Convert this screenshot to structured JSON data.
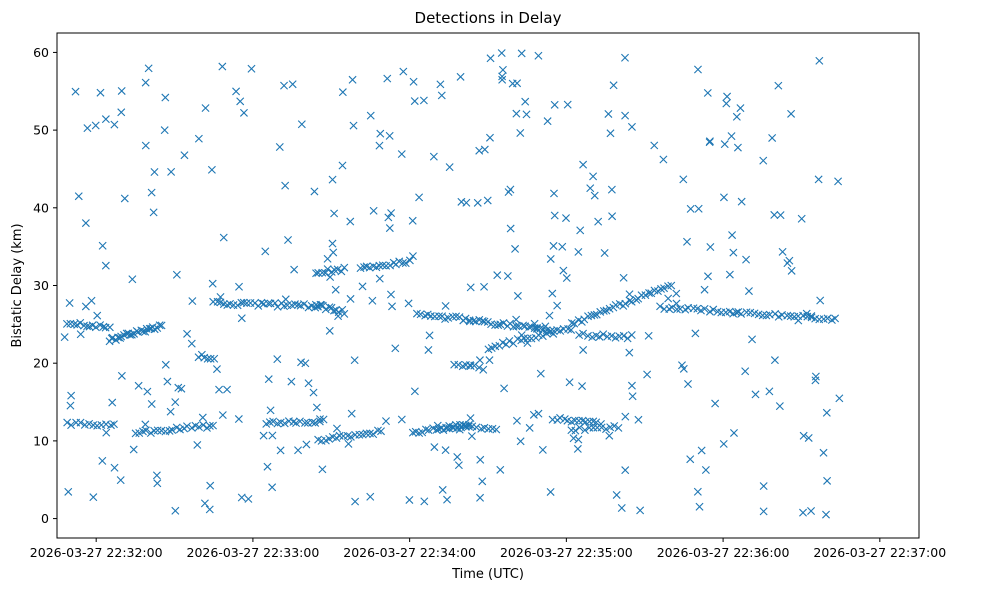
{
  "chart_data": {
    "type": "scatter",
    "title": "Detections in Delay",
    "xlabel": "Time (UTC)",
    "ylabel": "Bistatic Delay (km)",
    "x_unit": "seconds after 2026-03-27 22:31:45",
    "xlim": [
      0,
      330
    ],
    "ylim": [
      -2.5,
      62.5
    ],
    "x_ticks": [
      {
        "value": 15,
        "label": "2026-03-27 22:32:00"
      },
      {
        "value": 75,
        "label": "2026-03-27 22:33:00"
      },
      {
        "value": 135,
        "label": "2026-03-27 22:34:00"
      },
      {
        "value": 195,
        "label": "2026-03-27 22:35:00"
      },
      {
        "value": 255,
        "label": "2026-03-27 22:36:00"
      },
      {
        "value": 315,
        "label": "2026-03-27 22:37:00"
      }
    ],
    "y_ticks": [
      {
        "value": 0,
        "label": "0"
      },
      {
        "value": 10,
        "label": "10"
      },
      {
        "value": 20,
        "label": "20"
      },
      {
        "value": 30,
        "label": "30"
      },
      {
        "value": 40,
        "label": "40"
      },
      {
        "value": 50,
        "label": "50"
      },
      {
        "value": 60,
        "label": "60"
      }
    ],
    "marker": "x",
    "color": "#1f77b4",
    "tracks": [
      {
        "x_start": 4,
        "x_end": 20,
        "y_start": 25.2,
        "y_end": 24.6,
        "count": 14
      },
      {
        "x_start": 20,
        "x_end": 40,
        "y_start": 23.0,
        "y_end": 24.8,
        "count": 26
      },
      {
        "x_start": 60,
        "x_end": 100,
        "y_start": 27.8,
        "y_end": 27.3,
        "count": 32
      },
      {
        "x_start": 99,
        "x_end": 110,
        "y_start": 27.5,
        "y_end": 26.6,
        "count": 12
      },
      {
        "x_start": 99,
        "x_end": 110,
        "y_start": 31.7,
        "y_end": 32.1,
        "count": 10
      },
      {
        "x_start": 116,
        "x_end": 135,
        "y_start": 32.3,
        "y_end": 33.0,
        "count": 16
      },
      {
        "x_start": 138,
        "x_end": 158,
        "y_start": 26.3,
        "y_end": 25.6,
        "count": 16
      },
      {
        "x_start": 158,
        "x_end": 190,
        "y_start": 25.5,
        "y_end": 24.2,
        "count": 28
      },
      {
        "x_start": 165,
        "x_end": 197,
        "y_start": 22.0,
        "y_end": 24.5,
        "count": 24
      },
      {
        "x_start": 197,
        "x_end": 235,
        "y_start": 25.0,
        "y_end": 30.0,
        "count": 32
      },
      {
        "x_start": 200,
        "x_end": 220,
        "y_start": 23.6,
        "y_end": 23.4,
        "count": 14
      },
      {
        "x_start": 231,
        "x_end": 298,
        "y_start": 27.2,
        "y_end": 25.6,
        "count": 44
      },
      {
        "x_start": 4,
        "x_end": 22,
        "y_start": 12.3,
        "y_end": 12.0,
        "count": 12
      },
      {
        "x_start": 30,
        "x_end": 60,
        "y_start": 11.0,
        "y_end": 12.0,
        "count": 22
      },
      {
        "x_start": 80,
        "x_end": 102,
        "y_start": 12.2,
        "y_end": 12.6,
        "count": 16
      },
      {
        "x_start": 100,
        "x_end": 124,
        "y_start": 10.0,
        "y_end": 11.2,
        "count": 18
      },
      {
        "x_start": 136,
        "x_end": 158,
        "y_start": 11.0,
        "y_end": 12.2,
        "count": 18
      },
      {
        "x_start": 146,
        "x_end": 168,
        "y_start": 11.9,
        "y_end": 11.6,
        "count": 16
      },
      {
        "x_start": 190,
        "x_end": 208,
        "y_start": 12.8,
        "y_end": 12.2,
        "count": 14
      },
      {
        "x_start": 197,
        "x_end": 215,
        "y_start": 11.5,
        "y_end": 11.8,
        "count": 12
      },
      {
        "x_start": 152,
        "x_end": 163,
        "y_start": 20.0,
        "y_end": 19.3,
        "count": 8
      },
      {
        "x_start": 54,
        "x_end": 60,
        "y_start": 21.0,
        "y_end": 20.6,
        "count": 6
      }
    ],
    "clutter": {
      "count": 360,
      "x_range": [
        2,
        300
      ],
      "y_range": [
        0.5,
        60
      ],
      "seed": 20260327,
      "note": "uniformly scattered false detections"
    }
  }
}
